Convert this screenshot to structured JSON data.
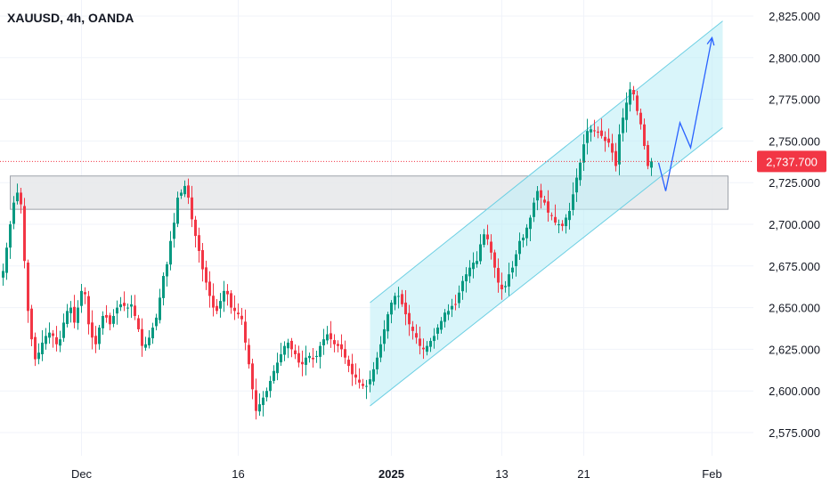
{
  "header": {
    "symbol_title": "XAUUSD, 4h, OANDA"
  },
  "colors": {
    "up": "#089981",
    "down": "#f23645",
    "channel_fill": "#bfeef6",
    "channel_stroke": "#6ccfe3",
    "zone_fill": "#e6e7ea",
    "zone_stroke": "#9fa3ab",
    "projection": "#2962ff",
    "price_tag_bg": "#f23645",
    "grid": "#f0f3fa",
    "axis_text": "#131722"
  },
  "chart_data": {
    "type": "candlestick",
    "title": "XAUUSD, 4h, OANDA",
    "ylim": [
      2562,
      2840
    ],
    "y_ticks": [
      "2,575.000",
      "2,600.000",
      "2,625.000",
      "2,650.000",
      "2,675.000",
      "2,700.000",
      "2,725.000",
      "2,750.000",
      "2,775.000",
      "2,800.000",
      "2,825.000"
    ],
    "x_ticks": [
      {
        "label": "Dec",
        "bar": 22,
        "bold": false
      },
      {
        "label": "16",
        "bar": 66,
        "bold": false
      },
      {
        "label": "2025",
        "bar": 109,
        "bold": true
      },
      {
        "label": "13",
        "bar": 140,
        "bold": false
      },
      {
        "label": "21",
        "bar": 163,
        "bold": false
      },
      {
        "label": "Feb",
        "bar": 199,
        "bold": false
      }
    ],
    "last_price": "2,737.700",
    "last_price_value": 2737.7,
    "zone": {
      "from_bar": 0,
      "to_bar": 202,
      "low": 2709,
      "high": 2729
    },
    "channel": {
      "from_bar": 103,
      "to_bar": 202,
      "lower_start": 2591,
      "lower_end": 2758,
      "upper_start": 2653,
      "upper_end": 2822
    },
    "projection_path": [
      {
        "bar": 184,
        "price": 2737
      },
      {
        "bar": 186,
        "price": 2720
      },
      {
        "bar": 190,
        "price": 2761
      },
      {
        "bar": 193,
        "price": 2746
      },
      {
        "bar": 199,
        "price": 2812
      }
    ],
    "closes": [
      2672,
      2686,
      2700,
      2713,
      2719,
      2712,
      2678,
      2648,
      2631,
      2619,
      2623,
      2629,
      2633,
      2635,
      2633,
      2628,
      2631,
      2641,
      2648,
      2650,
      2641,
      2650,
      2660,
      2658,
      2640,
      2632,
      2628,
      2638,
      2645,
      2644,
      2640,
      2645,
      2650,
      2652,
      2651,
      2650,
      2652,
      2645,
      2637,
      2627,
      2628,
      2632,
      2638,
      2644,
      2656,
      2669,
      2676,
      2690,
      2701,
      2716,
      2719,
      2723,
      2716,
      2703,
      2693,
      2684,
      2673,
      2665,
      2657,
      2650,
      2648,
      2654,
      2660,
      2658,
      2650,
      2648,
      2646,
      2643,
      2629,
      2616,
      2601,
      2588,
      2592,
      2596,
      2600,
      2606,
      2612,
      2617,
      2622,
      2627,
      2629,
      2625,
      2622,
      2617,
      2616,
      2620,
      2621,
      2619,
      2621,
      2627,
      2631,
      2634,
      2631,
      2628,
      2627,
      2625,
      2620,
      2615,
      2610,
      2608,
      2605,
      2603,
      2603,
      2607,
      2613,
      2620,
      2628,
      2637,
      2646,
      2653,
      2657,
      2657,
      2652,
      2646,
      2640,
      2636,
      2632,
      2627,
      2625,
      2627,
      2630,
      2633,
      2638,
      2642,
      2647,
      2648,
      2651,
      2652,
      2659,
      2666,
      2670,
      2674,
      2677,
      2678,
      2688,
      2694,
      2691,
      2683,
      2674,
      2665,
      2661,
      2663,
      2670,
      2674,
      2682,
      2690,
      2692,
      2698,
      2704,
      2713,
      2720,
      2716,
      2713,
      2707,
      2705,
      2701,
      2700,
      2699,
      2704,
      2708,
      2718,
      2728,
      2737,
      2748,
      2756,
      2757,
      2756,
      2755,
      2753,
      2750,
      2749,
      2743,
      2735,
      2754,
      2764,
      2773,
      2781,
      2778,
      2768,
      2760,
      2747,
      2735,
      2737.7
    ],
    "axis_labels": {
      "x": "",
      "y": ""
    }
  }
}
